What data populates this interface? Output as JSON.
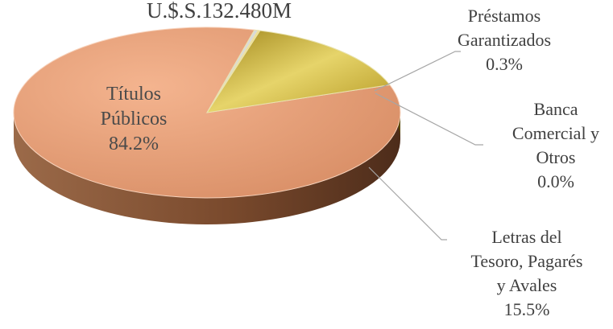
{
  "chart_data": {
    "type": "pie",
    "title": "U.$.S.132.480M",
    "slices": [
      {
        "name": "Títulos Públicos",
        "value": 84.2,
        "label_lines": [
          "Títulos",
          "Públicos",
          "84.2%"
        ],
        "color": "#E8A178",
        "side_color": "#8A5634"
      },
      {
        "name": "Préstamos Garantizados",
        "value": 0.3,
        "label_lines": [
          "Préstamos",
          "Garantizados",
          "0.3%"
        ],
        "color": "#D9D9D9",
        "side_color": "#8C8C8C"
      },
      {
        "name": "Banca Comercial y Otros",
        "value": 0.0,
        "label_lines": [
          "Banca",
          "Comercial y",
          "Otros",
          "0.0%"
        ],
        "color": "#F3DF89",
        "side_color": "#6E5A12"
      },
      {
        "name": "Letras del Tesoro, Pagarés y Avales",
        "value": 15.5,
        "label_lines": [
          "Letras del",
          "Tesoro, Pagarés",
          "y Avales",
          "15.5%"
        ],
        "color": "#D8BE3A",
        "side_color": "#5A4A0E"
      }
    ],
    "legend": "none",
    "style": "3d-pie"
  }
}
